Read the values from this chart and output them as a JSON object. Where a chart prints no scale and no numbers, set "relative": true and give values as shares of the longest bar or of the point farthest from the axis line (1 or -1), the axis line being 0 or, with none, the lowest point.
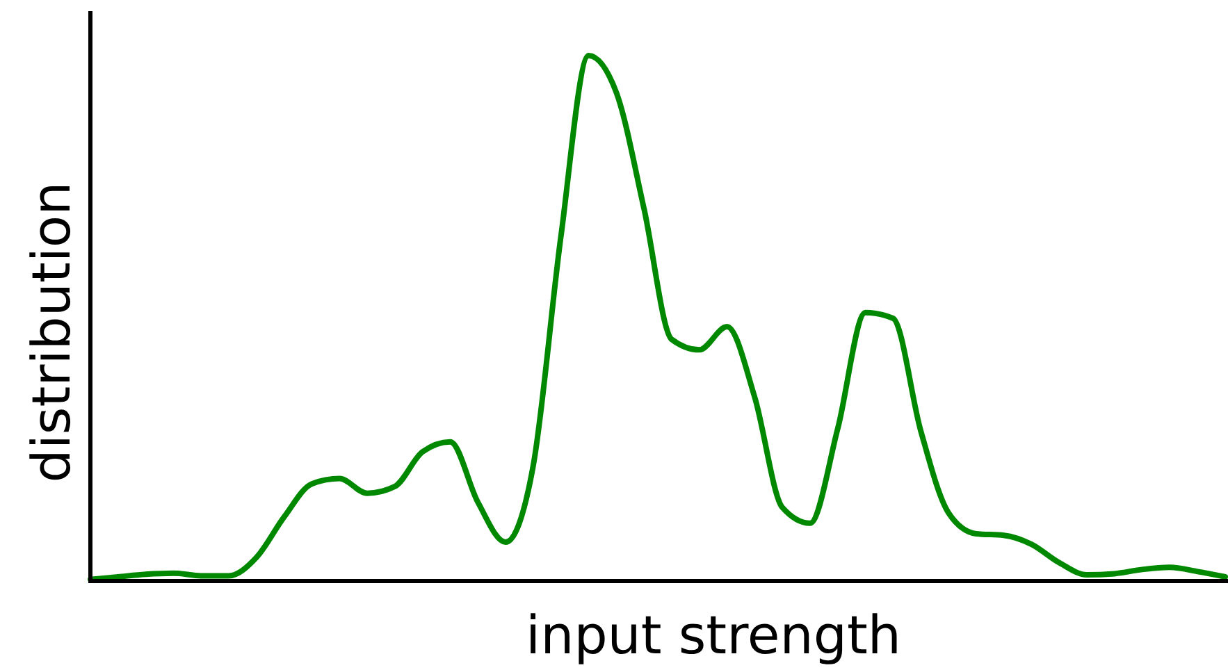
{
  "chart_data": {
    "type": "line",
    "xlabel": "input strength",
    "ylabel": "distribution",
    "relative": true,
    "categories": [
      null,
      null,
      null,
      null,
      null,
      null,
      null,
      null,
      null,
      null,
      null,
      null,
      null,
      null,
      null,
      null,
      null,
      null,
      null,
      null,
      null,
      null,
      null,
      null,
      null,
      null,
      null,
      null,
      null,
      null,
      null,
      null,
      null,
      null,
      null,
      null,
      null,
      null,
      null,
      null,
      null,
      null
    ],
    "series": [
      {
        "color": "#008800",
        "values": [
          0.003,
          0.008,
          0.013,
          0.015,
          0.01,
          0.01,
          0.045,
          0.122,
          0.185,
          0.195,
          0.167,
          0.18,
          0.246,
          0.265,
          0.15,
          0.074,
          0.22,
          0.656,
          1,
          0.93,
          0.709,
          0.46,
          0.44,
          0.484,
          0.35,
          0.14,
          0.11,
          0.29,
          0.511,
          0.5,
          0.286,
          0.13,
          0.09,
          0.087,
          0.07,
          0.035,
          0.012,
          0.014,
          0.022,
          0.026,
          0.018,
          0.008
        ]
      }
    ]
  }
}
